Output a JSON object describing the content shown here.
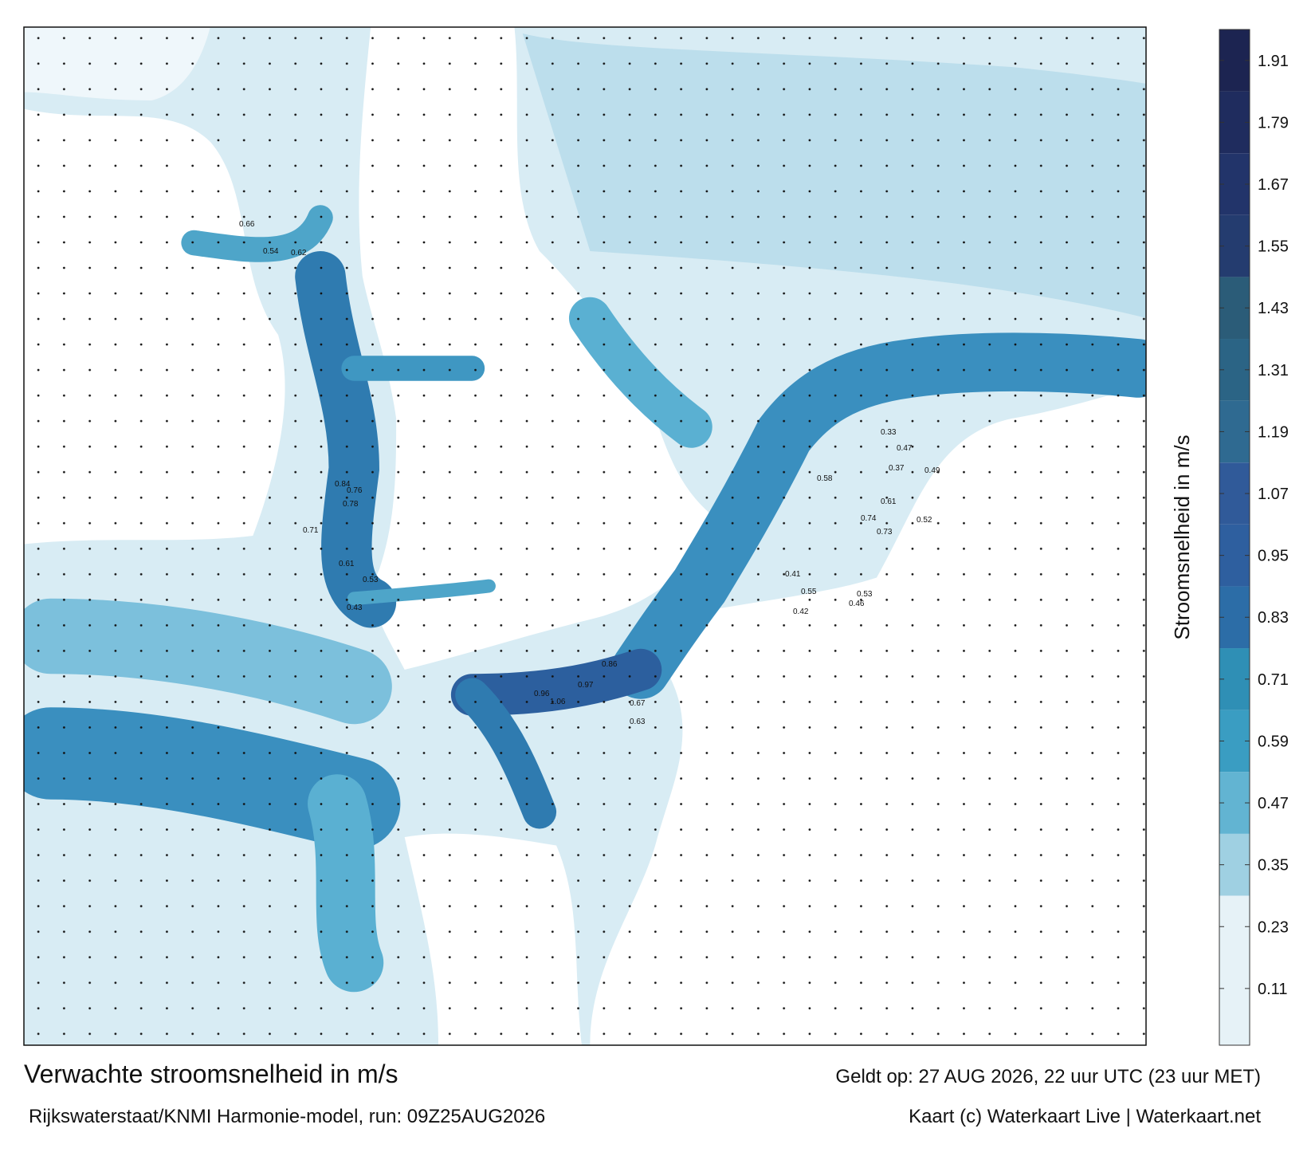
{
  "map": {
    "title": "Verwachte stroomsnelheid in m/s",
    "subtitle": "Rijkswaterstaat/KNMI Harmonie-model, run: 09Z25AUG2026",
    "valid": "Geldt op: 27 AUG 2026, 22 uur UTC (23 uur MET)",
    "credit": "Kaart (c) Waterkaart Live | Waterkaart.net",
    "colorbar": {
      "label": "Stroomsnelheid in m/s",
      "lim": [
        0,
        1.97
      ],
      "ticks": [
        0.11,
        0.23,
        0.35,
        0.47,
        0.59,
        0.71,
        0.83,
        0.95,
        1.07,
        1.19,
        1.31,
        1.43,
        1.55,
        1.67,
        1.79,
        1.91
      ],
      "bounds": [
        0,
        0.29,
        0.41,
        0.53,
        0.65,
        0.77,
        0.89,
        1.01,
        1.13,
        1.25,
        1.37,
        1.49,
        1.61,
        1.73,
        1.85,
        1.97
      ],
      "colors": [
        "#e6f2f7",
        "#9fd0e2",
        "#62b4d2",
        "#3a9dc2",
        "#2f8fb5",
        "#2c6da7",
        "#2e5f9f",
        "#305a99",
        "#2f6a91",
        "#2b6485",
        "#2b5c78",
        "#243c6f",
        "#22346a",
        "#1f2c5e",
        "#1c2451"
      ]
    },
    "labels": [
      "0.66",
      "0.54",
      "0.62",
      "0.84",
      "0.76",
      "0.78",
      "0.71",
      "0.61",
      "0.53",
      "0.43",
      "0.96",
      "1.06",
      "0.86",
      "0.97",
      "0.67",
      "0.63",
      "0.61",
      "0.74",
      "0.73",
      "0.58",
      "0.53",
      "0.55",
      "0.46",
      "0.42",
      "0.33",
      "0.37",
      "0.49",
      "0.47",
      "0.41",
      "0.52"
    ]
  }
}
